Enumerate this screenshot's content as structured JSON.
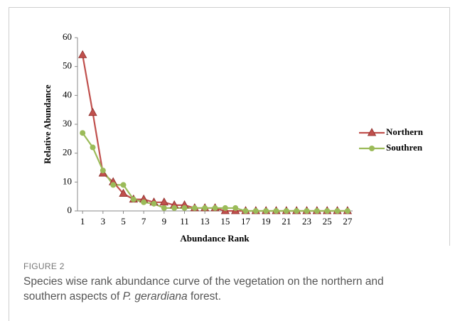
{
  "figure_label": "FIGURE 2",
  "caption": [
    "Species wise rank abundance curve of the vegetation on the northern and southern aspects of ",
    "P. gerardiana",
    " forest."
  ],
  "chart_data": {
    "type": "line",
    "xlabel": "Abundance Rank",
    "ylabel": "Relative Abundance",
    "x": [
      1,
      2,
      3,
      4,
      5,
      6,
      7,
      8,
      9,
      10,
      11,
      12,
      13,
      14,
      15,
      16,
      17,
      18,
      19,
      20,
      21,
      22,
      23,
      24,
      25,
      26,
      27
    ],
    "series": [
      {
        "name": "Northern",
        "color": "#c0504d",
        "marker": "triangle",
        "values": [
          54,
          34,
          13,
          10,
          6,
          4,
          4,
          3,
          3,
          2,
          2,
          1,
          1,
          1,
          0,
          0,
          0,
          0,
          0,
          0,
          0,
          0,
          0,
          0,
          0,
          0,
          0
        ]
      },
      {
        "name": "Southren",
        "color": "#9bbb59",
        "marker": "circle",
        "values": [
          27,
          22,
          14,
          9,
          9,
          4,
          3,
          2.5,
          1,
          1,
          1,
          1,
          1,
          1,
          1,
          1,
          0,
          0,
          0,
          0,
          0,
          0,
          0,
          0,
          0,
          0,
          0
        ]
      }
    ],
    "xlim": [
      0.5,
      27.5
    ],
    "xticks": [
      1,
      3,
      5,
      7,
      9,
      11,
      13,
      15,
      17,
      19,
      21,
      23,
      25,
      27
    ],
    "ylim": [
      0,
      60
    ],
    "yticks": [
      0,
      10,
      20,
      30,
      40,
      50,
      60
    ],
    "grid": false,
    "legend": "right"
  }
}
